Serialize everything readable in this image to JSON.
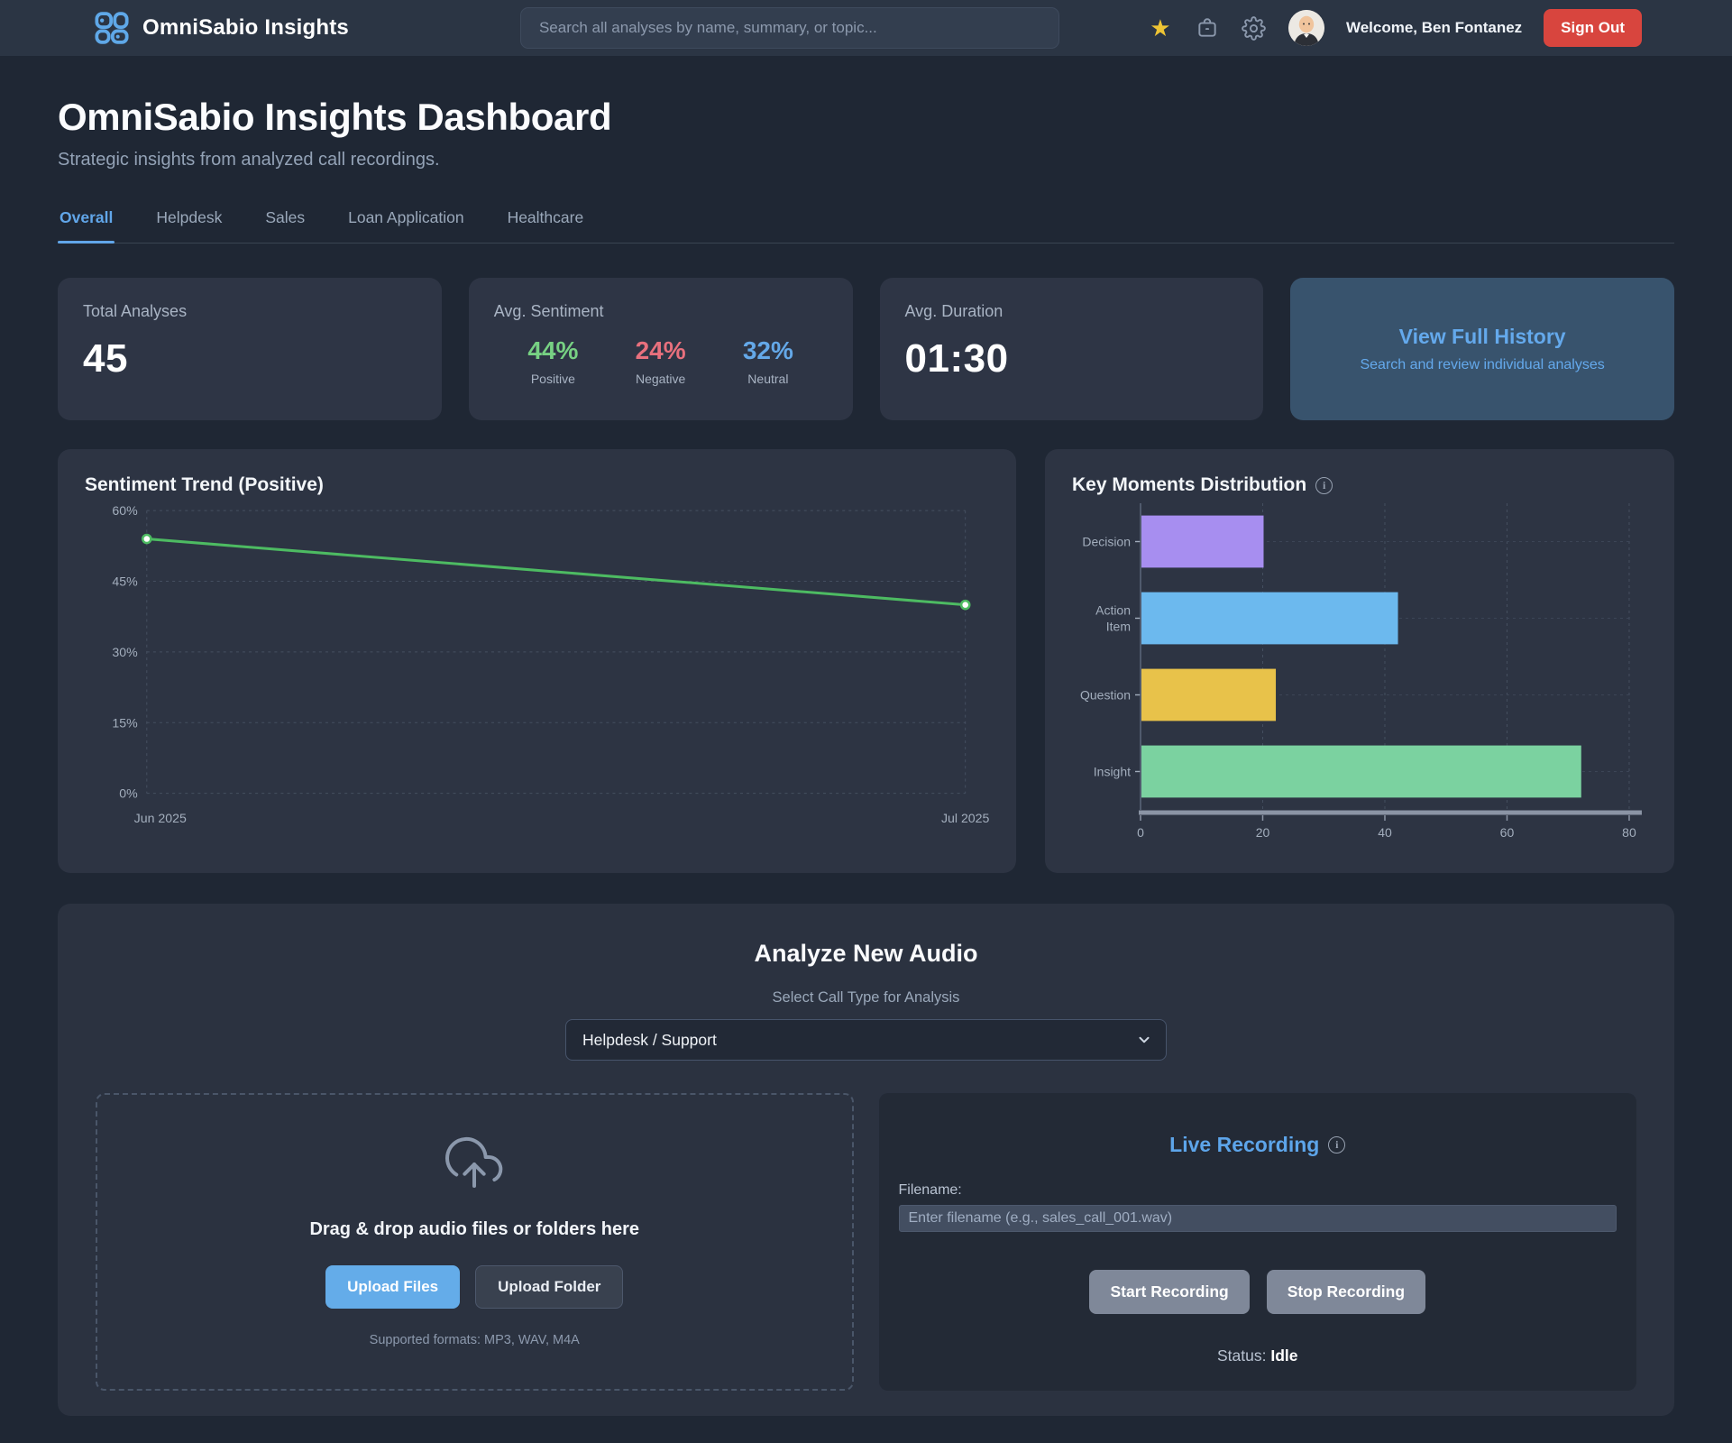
{
  "header": {
    "brand": "OmniSabio Insights",
    "search_placeholder": "Search all analyses by name, summary, or topic...",
    "welcome": "Welcome, Ben Fontanez",
    "sign_out": "Sign Out",
    "icons": [
      "star-icon",
      "briefcase-icon",
      "gear-icon",
      "avatar"
    ]
  },
  "page": {
    "title": "OmniSabio Insights Dashboard",
    "subtitle": "Strategic insights from analyzed call recordings."
  },
  "tabs": [
    {
      "label": "Overall",
      "active": true
    },
    {
      "label": "Helpdesk",
      "active": false
    },
    {
      "label": "Sales",
      "active": false
    },
    {
      "label": "Loan Application",
      "active": false
    },
    {
      "label": "Healthcare",
      "active": false
    }
  ],
  "stats": {
    "total": {
      "label": "Total Analyses",
      "value": "45"
    },
    "sentiment": {
      "label": "Avg. Sentiment",
      "items": [
        {
          "value": "44%",
          "sub": "Positive",
          "color": "#77d183"
        },
        {
          "value": "24%",
          "sub": "Negative",
          "color": "#e8707d"
        },
        {
          "value": "32%",
          "sub": "Neutral",
          "color": "#64a8e8"
        }
      ]
    },
    "duration": {
      "label": "Avg. Duration",
      "value": "01:30"
    },
    "history": {
      "title": "View Full History",
      "subtitle": "Search and review individual analyses"
    }
  },
  "chart_data": [
    {
      "type": "line",
      "title": "Sentiment Trend (Positive)",
      "x": [
        "Jun 2025",
        "Jul 2025"
      ],
      "series": [
        {
          "name": "Positive",
          "values": [
            54,
            40
          ]
        }
      ],
      "ylim": [
        0,
        60
      ],
      "yticks": [
        0,
        15,
        30,
        45,
        60
      ],
      "ytick_suffix": "%",
      "grid": true,
      "legend": "none",
      "line_color": "#4dbb62"
    },
    {
      "type": "bar",
      "orientation": "horizontal",
      "title": "Key Moments Distribution",
      "categories": [
        "Decision",
        "Action Item",
        "Question",
        "Insight"
      ],
      "values": [
        20,
        42,
        22,
        72
      ],
      "colors": [
        "#a78ef0",
        "#6cb9ee",
        "#e8c24a",
        "#7bd2a0"
      ],
      "xlim": [
        0,
        80
      ],
      "xticks": [
        0,
        20,
        40,
        60,
        80
      ],
      "grid": true,
      "legend": "none"
    }
  ],
  "analyze": {
    "title": "Analyze New Audio",
    "select_label": "Select Call Type for Analysis",
    "call_type": "Helpdesk / Support",
    "dropzone": {
      "text": "Drag & drop audio files or folders here",
      "upload_files": "Upload Files",
      "upload_folder": "Upload Folder",
      "formats": "Supported formats: MP3, WAV, M4A"
    },
    "recording": {
      "title": "Live Recording",
      "filename_label": "Filename:",
      "filename_placeholder": "Enter filename (e.g., sales_call_001.wav)",
      "start": "Start Recording",
      "stop": "Stop Recording",
      "status_label": "Status:",
      "status_value": "Idle"
    }
  },
  "palette": {
    "accent_blue": "#61a6e9",
    "positive_green": "#77d183",
    "negative_red": "#e8707d",
    "neutral_blue": "#64a8e8",
    "signout_red": "#d8453e",
    "star_yellow": "#eec434",
    "card_bg": "#2e3545",
    "page_bg": "#1f2734",
    "header_bg": "#2b3544",
    "history_card_bg": "#38536d"
  }
}
